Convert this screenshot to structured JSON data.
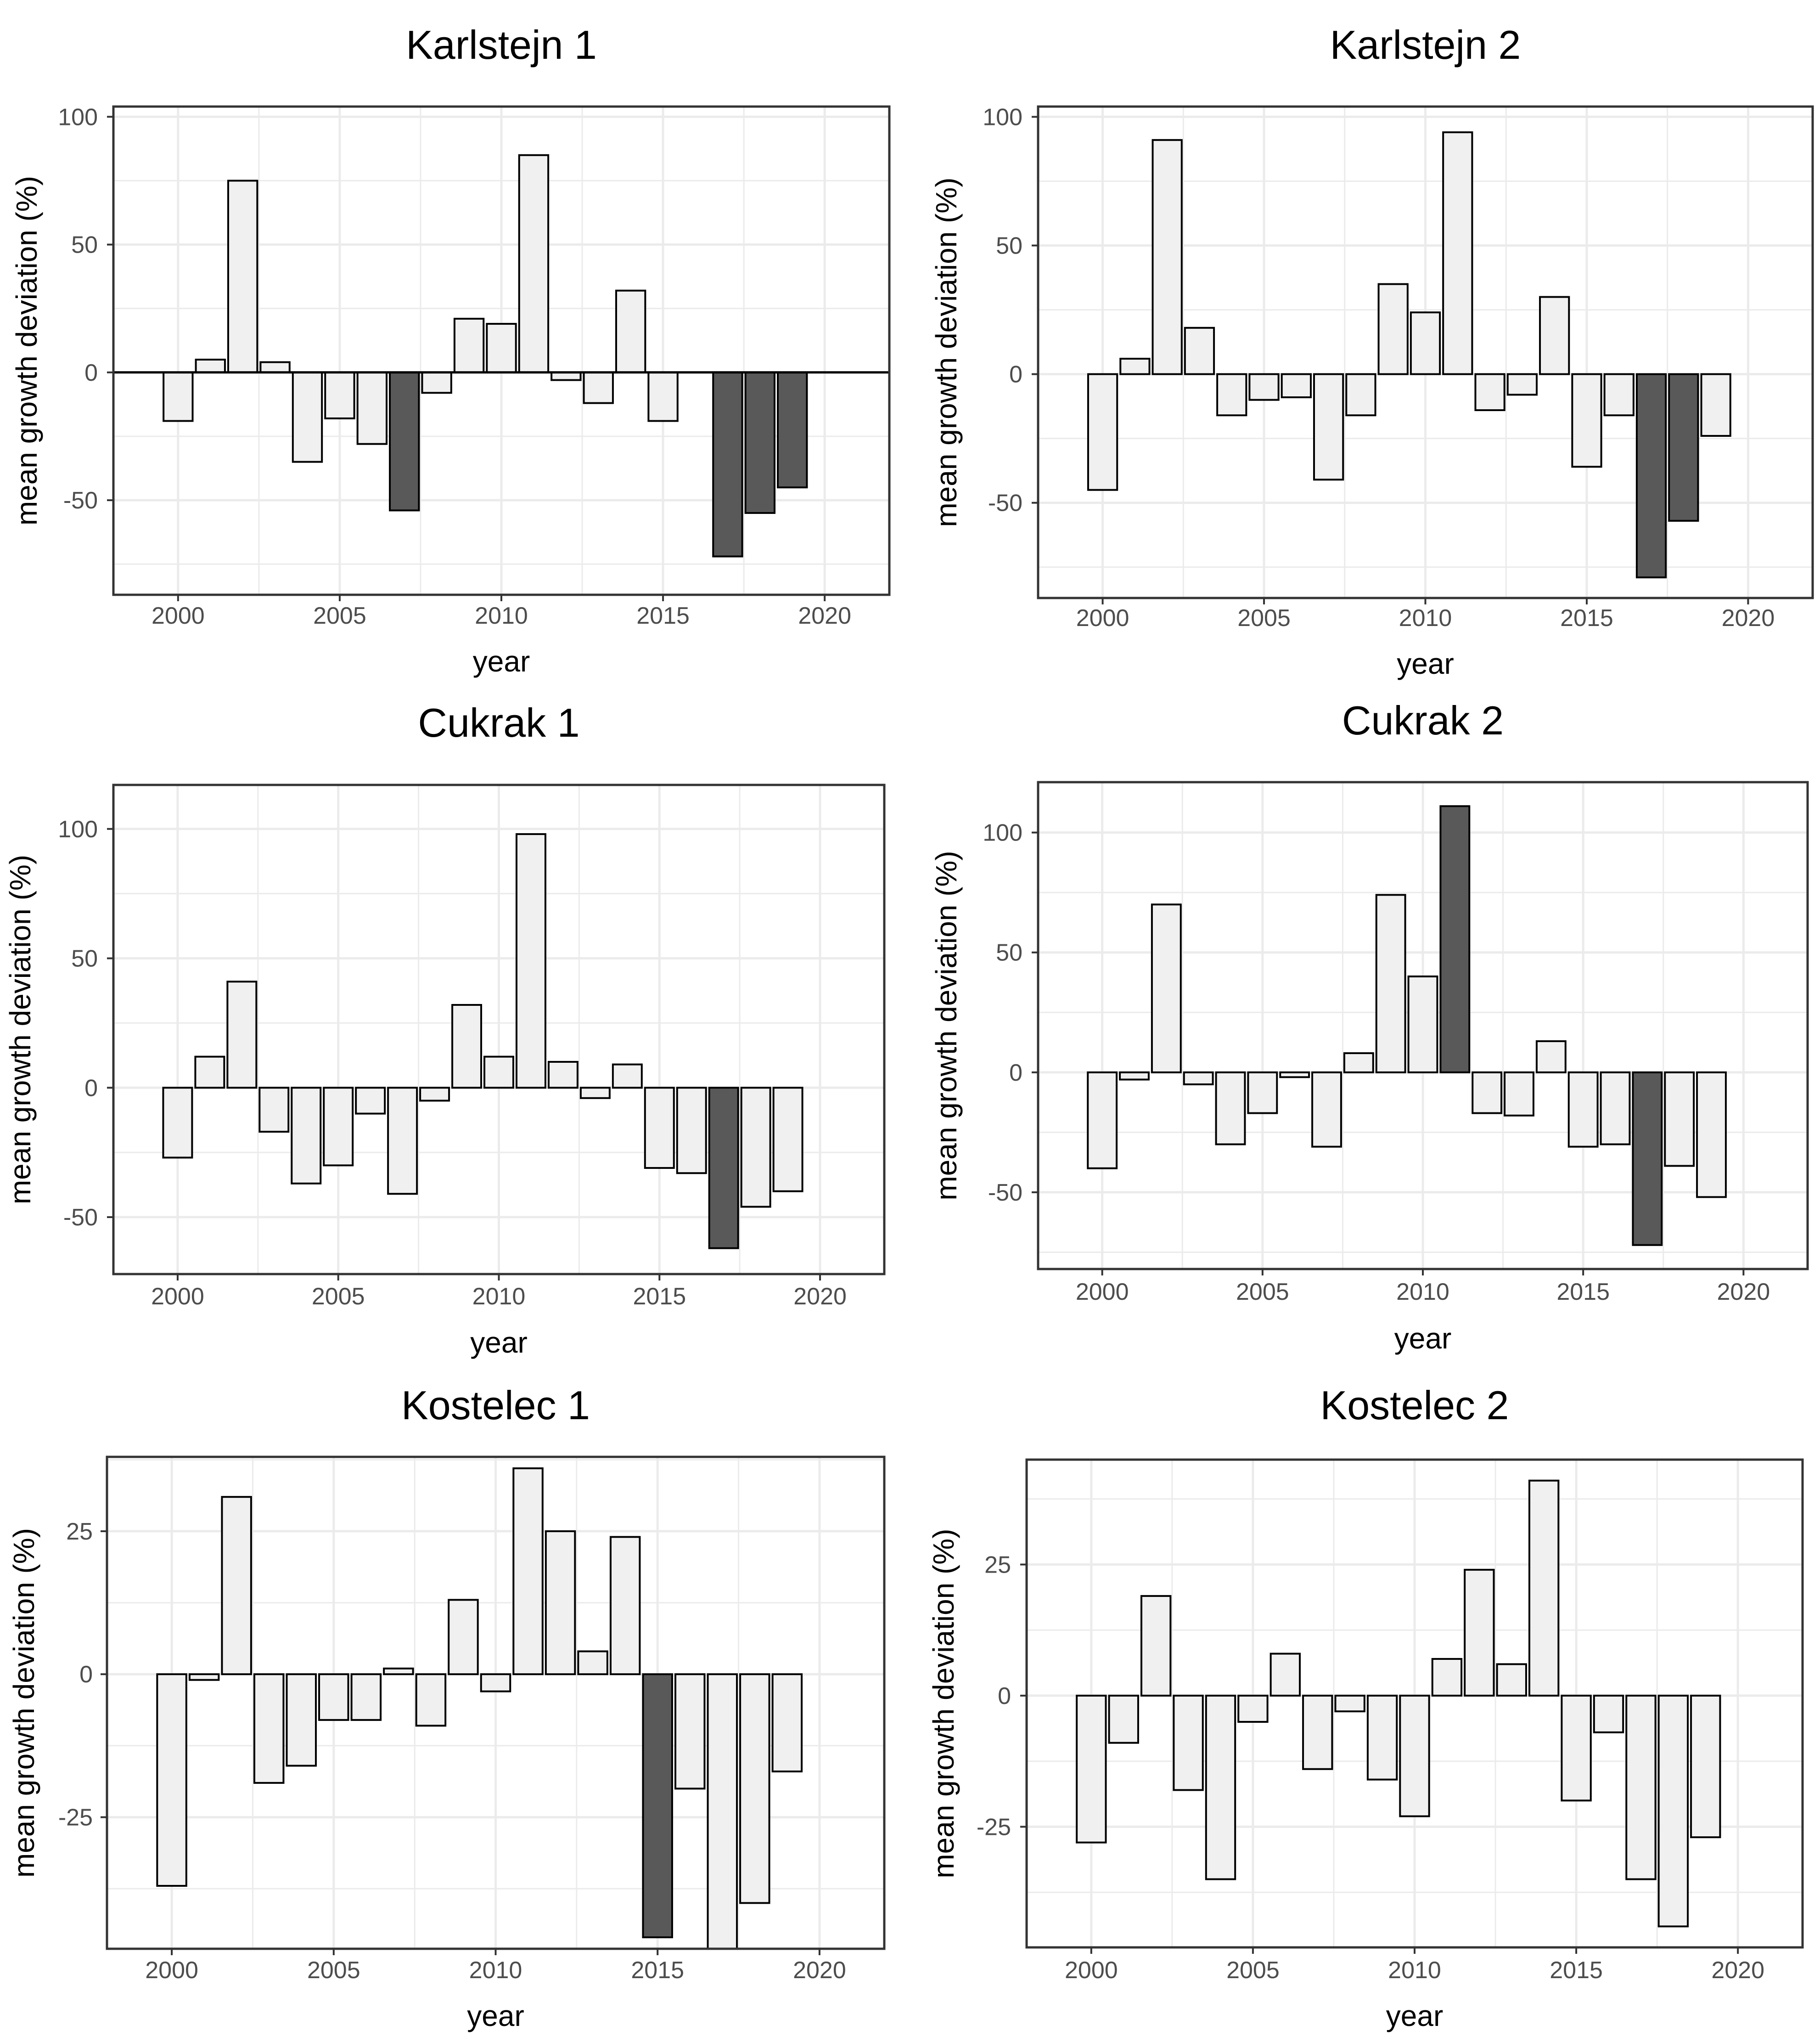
{
  "figure": {
    "x_label": "year",
    "y_label": "mean growth deviation (%)"
  },
  "colors": {
    "normal": "#f0f0f0",
    "highlight": "#595959",
    "border": "#000000",
    "grid": "#ebebeb"
  },
  "chart_data": [
    {
      "type": "bar",
      "title": "Karlstejn 1",
      "xlabel": "year",
      "ylabel": "mean growth deviation (%)",
      "xlim": [
        1998,
        2022
      ],
      "ylim": [
        -87,
        104
      ],
      "x_ticks": [
        2000,
        2005,
        2010,
        2015,
        2020
      ],
      "y_ticks": [
        -50,
        0,
        50,
        100
      ],
      "years": [
        2000,
        2001,
        2002,
        2003,
        2004,
        2005,
        2006,
        2007,
        2008,
        2009,
        2010,
        2011,
        2012,
        2013,
        2014,
        2015,
        2016,
        2017,
        2018,
        2019
      ],
      "values": [
        -19,
        5,
        75,
        4,
        -35,
        -18,
        -28,
        -54,
        -8,
        21,
        19,
        85,
        -3,
        -12,
        32,
        -19,
        null,
        -72,
        -55,
        -45
      ],
      "highlight": [
        2007,
        2017,
        2018,
        2019
      ],
      "zero_line": true
    },
    {
      "type": "bar",
      "title": "Karlstejn 2",
      "xlabel": "year",
      "ylabel": "mean growth deviation (%)",
      "xlim": [
        1998,
        2022
      ],
      "ylim": [
        -87,
        104
      ],
      "x_ticks": [
        2000,
        2005,
        2010,
        2015,
        2020
      ],
      "y_ticks": [
        -50,
        0,
        50,
        100
      ],
      "years": [
        2000,
        2001,
        2002,
        2003,
        2004,
        2005,
        2006,
        2007,
        2008,
        2009,
        2010,
        2011,
        2012,
        2013,
        2014,
        2015,
        2016,
        2017,
        2018,
        2019
      ],
      "values": [
        -45,
        6,
        91,
        18,
        -16,
        -10,
        -9,
        -41,
        -16,
        35,
        24,
        94,
        -14,
        -8,
        30,
        -36,
        -16,
        -79,
        -57,
        -24
      ],
      "highlight": [
        2017,
        2018
      ],
      "zero_line": false
    },
    {
      "type": "bar",
      "title": "Cukrak 1",
      "xlabel": "year",
      "ylabel": "mean growth deviation (%)",
      "xlim": [
        1998,
        2022
      ],
      "ylim": [
        -72,
        117
      ],
      "x_ticks": [
        2000,
        2005,
        2010,
        2015,
        2020
      ],
      "y_ticks": [
        -50,
        0,
        50,
        100
      ],
      "years": [
        2000,
        2001,
        2002,
        2003,
        2004,
        2005,
        2006,
        2007,
        2008,
        2009,
        2010,
        2011,
        2012,
        2013,
        2014,
        2015,
        2016,
        2017,
        2018,
        2019
      ],
      "values": [
        -27,
        12,
        41,
        -17,
        -37,
        -30,
        -10,
        -41,
        -5,
        32,
        12,
        98,
        10,
        -4,
        9,
        -31,
        -33,
        -62,
        -46,
        -40
      ],
      "highlight": [
        2017
      ],
      "zero_line": false
    },
    {
      "type": "bar",
      "title": "Cukrak 2",
      "xlabel": "year",
      "ylabel": "mean growth deviation (%)",
      "xlim": [
        1998,
        2022
      ],
      "ylim": [
        -82,
        121
      ],
      "x_ticks": [
        2000,
        2005,
        2010,
        2015,
        2020
      ],
      "y_ticks": [
        -50,
        0,
        50,
        100
      ],
      "years": [
        2000,
        2001,
        2002,
        2003,
        2004,
        2005,
        2006,
        2007,
        2008,
        2009,
        2010,
        2011,
        2012,
        2013,
        2014,
        2015,
        2016,
        2017,
        2018,
        2019
      ],
      "values": [
        -40,
        -3,
        70,
        -5,
        -30,
        -17,
        -2,
        -31,
        8,
        74,
        40,
        111,
        -17,
        -18,
        13,
        -31,
        -30,
        -72,
        -39,
        -52
      ],
      "highlight": [
        2011,
        2017
      ],
      "zero_line": false
    },
    {
      "type": "bar",
      "title": "Kostelec 1",
      "xlabel": "year",
      "ylabel": "mean growth deviation (%)",
      "xlim": [
        1998,
        2022
      ],
      "ylim": [
        -48,
        38
      ],
      "x_ticks": [
        2000,
        2005,
        2010,
        2015,
        2020
      ],
      "y_ticks": [
        -25,
        0,
        25
      ],
      "years": [
        2000,
        2001,
        2002,
        2003,
        2004,
        2005,
        2006,
        2007,
        2008,
        2009,
        2010,
        2011,
        2012,
        2013,
        2014,
        2015,
        2016,
        2017,
        2018,
        2019
      ],
      "values": [
        -37,
        -1,
        31,
        -19,
        -16,
        -8,
        -8,
        1,
        -9,
        13,
        -3,
        36,
        25,
        4,
        24,
        -46,
        -20,
        -48,
        -40,
        -17
      ],
      "highlight": [
        2015
      ],
      "zero_line": false
    },
    {
      "type": "bar",
      "title": "Kostelec 2",
      "xlabel": "year",
      "ylabel": "mean growth deviation (%)",
      "xlim": [
        1998,
        2022
      ],
      "ylim": [
        -48,
        45
      ],
      "x_ticks": [
        2000,
        2005,
        2010,
        2015,
        2020
      ],
      "y_ticks": [
        -25,
        0,
        25
      ],
      "years": [
        2000,
        2001,
        2002,
        2003,
        2004,
        2005,
        2006,
        2007,
        2008,
        2009,
        2010,
        2011,
        2012,
        2013,
        2014,
        2015,
        2016,
        2017,
        2018,
        2019
      ],
      "values": [
        -28,
        -9,
        19,
        -18,
        -35,
        -5,
        8,
        -14,
        -3,
        -16,
        -23,
        7,
        24,
        6,
        41,
        -20,
        -7,
        -35,
        -44,
        -27
      ],
      "highlight": [],
      "zero_line": false
    }
  ]
}
